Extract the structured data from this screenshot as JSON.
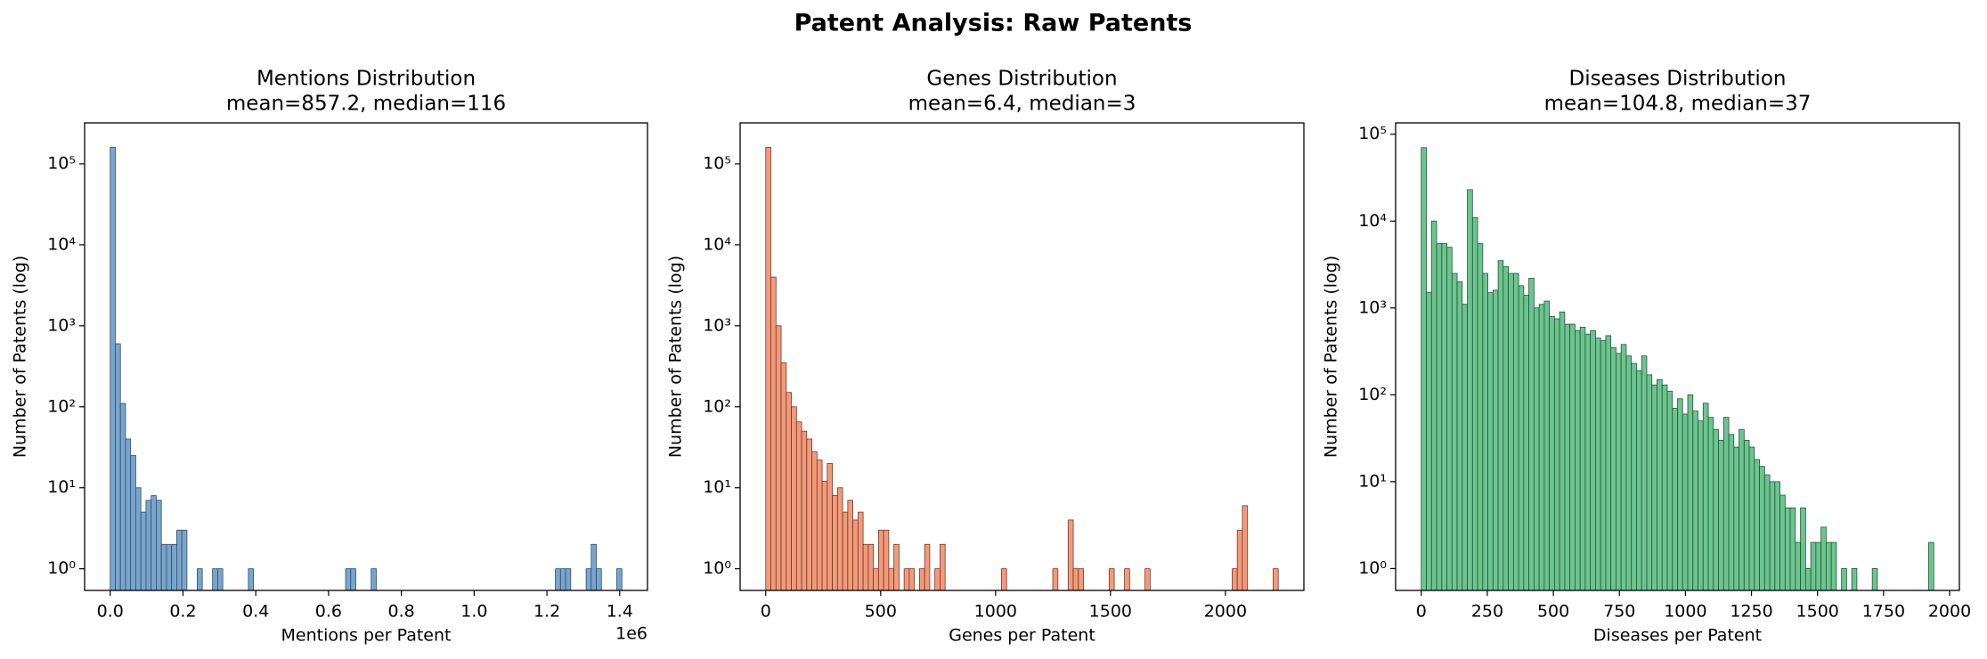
{
  "title": "Patent Analysis: Raw Patents",
  "chart_data": [
    {
      "type": "histogram",
      "title": "Mentions Distribution",
      "subtitle": "mean=857.2, median=116",
      "xlabel": "Mentions per Patent",
      "ylabel": "Number of Patents (log)",
      "x_offset_label": "1e6",
      "color": "#79a5cc",
      "edgecolor": "#2f4f6a",
      "yscale": "log",
      "bins": [
        0,
        14060,
        28120,
        42180,
        56240,
        70300,
        84360,
        98420,
        112480,
        126540,
        140600,
        154660,
        168720,
        182780,
        196840,
        210900,
        224960,
        239020,
        253080,
        267140,
        281200,
        295260,
        309320,
        323380,
        337440,
        351500,
        365560,
        379620,
        393680,
        407740,
        421800,
        435860,
        449920,
        463980,
        478040,
        492100,
        506160,
        520220,
        534280,
        548340,
        562400,
        576460,
        590520,
        604580,
        618640,
        632700,
        646760,
        660820,
        674880,
        688940,
        703000,
        717060,
        731120,
        745180,
        759240,
        773300,
        787360,
        801420,
        815480,
        829540,
        843600,
        857660,
        871720,
        885780,
        899840,
        913900,
        927960,
        942020,
        956080,
        970140,
        984200,
        998260,
        1012320,
        1026380,
        1040440,
        1054500,
        1068560,
        1082620,
        1096680,
        1110740,
        1124800,
        1138860,
        1152920,
        1166980,
        1181040,
        1195100,
        1209160,
        1223220,
        1237280,
        1251340,
        1265400,
        1279460,
        1293520,
        1307580,
        1321640,
        1335700,
        1349760,
        1363820,
        1377880,
        1391940,
        1406000
      ],
      "values": [
        160000,
        600,
        110,
        40,
        25,
        10,
        5,
        7,
        8,
        7,
        2,
        2,
        2,
        3,
        3,
        0,
        0,
        1,
        0,
        0,
        1,
        1,
        0,
        0,
        0,
        0,
        0,
        1,
        0,
        0,
        0,
        0,
        0,
        0,
        0,
        0,
        0,
        0,
        0,
        0,
        0,
        0,
        0,
        0,
        0,
        0,
        1,
        1,
        0,
        0,
        0,
        1,
        0,
        0,
        0,
        0,
        0,
        0,
        0,
        0,
        0,
        0,
        0,
        0,
        0,
        0,
        0,
        0,
        0,
        0,
        0,
        0,
        0,
        0,
        0,
        0,
        0,
        0,
        0,
        0,
        0,
        0,
        0,
        0,
        0,
        0,
        0,
        1,
        1,
        1,
        0,
        0,
        0,
        1,
        2,
        1,
        0,
        0,
        0,
        1
      ],
      "xlim": [
        -70300,
        1476300
      ],
      "xticks": [
        {
          "value": 0,
          "label": "0.0"
        },
        {
          "value": 200000,
          "label": "0.2"
        },
        {
          "value": 400000,
          "label": "0.4"
        },
        {
          "value": 600000,
          "label": "0.6"
        },
        {
          "value": 800000,
          "label": "0.8"
        },
        {
          "value": 1000000,
          "label": "1.0"
        },
        {
          "value": 1200000,
          "label": "1.2"
        },
        {
          "value": 1400000,
          "label": "1.4"
        }
      ],
      "ylim": [
        0.54,
        320000
      ],
      "yticks": [
        {
          "value": 1,
          "label": "10⁰"
        },
        {
          "value": 10,
          "label": "10¹"
        },
        {
          "value": 100,
          "label": "10²"
        },
        {
          "value": 1000,
          "label": "10³"
        },
        {
          "value": 10000,
          "label": "10⁴"
        },
        {
          "value": 100000,
          "label": "10⁵"
        }
      ]
    },
    {
      "type": "histogram",
      "title": "Genes Distribution",
      "subtitle": "mean=6.4, median=3",
      "xlabel": "Genes per Patent",
      "ylabel": "Number of Patents (log)",
      "color": "#f39a7b",
      "edgecolor": "#6e3a28",
      "yscale": "log",
      "bins": [
        0,
        22.3,
        44.6,
        66.9,
        89.2,
        111.5,
        133.8,
        156.1,
        178.4,
        200.7,
        223,
        245.3,
        267.6,
        289.9,
        312.2,
        334.5,
        356.8,
        379.1,
        401.4,
        423.7,
        446,
        468.3,
        490.6,
        512.9,
        535.2,
        557.5,
        579.8,
        602.1,
        624.4,
        646.7,
        669,
        691.3,
        713.6,
        735.9,
        758.2,
        780.5,
        802.8,
        825.1,
        847.4,
        869.7,
        892,
        914.3,
        936.6,
        958.9,
        981.2,
        1003.5,
        1025.8,
        1048.1,
        1070.4,
        1092.7,
        1115,
        1137.3,
        1159.6,
        1181.9,
        1204.2,
        1226.5,
        1248.8,
        1271.1,
        1293.4,
        1315.7,
        1338,
        1360.3,
        1382.6,
        1404.9,
        1427.2,
        1449.5,
        1471.8,
        1494.1,
        1516.4,
        1538.7,
        1561,
        1583.3,
        1605.6,
        1627.9,
        1650.2,
        1672.5,
        1694.8,
        1717.1,
        1739.4,
        1761.7,
        1784,
        1806.3,
        1828.6,
        1850.9,
        1873.2,
        1895.5,
        1917.8,
        1940.1,
        1962.4,
        1984.7,
        2007,
        2029.3,
        2051.6,
        2073.9,
        2096.2,
        2118.5,
        2140.8,
        2163.1,
        2185.4,
        2207.7,
        2230
      ],
      "values": [
        160000,
        4000,
        1000,
        350,
        150,
        100,
        65,
        50,
        40,
        28,
        22,
        12,
        20,
        8,
        10,
        5,
        7,
        4,
        5,
        2,
        2,
        1,
        3,
        3,
        1,
        2,
        0,
        1,
        1,
        0,
        1,
        2,
        0,
        1,
        2,
        0,
        0,
        0,
        0,
        0,
        0,
        0,
        0,
        0,
        0,
        0,
        1,
        0,
        0,
        0,
        0,
        0,
        0,
        0,
        0,
        0,
        1,
        0,
        0,
        4,
        1,
        1,
        0,
        0,
        0,
        0,
        0,
        1,
        0,
        0,
        1,
        0,
        0,
        0,
        1,
        0,
        0,
        0,
        0,
        0,
        0,
        0,
        0,
        0,
        0,
        0,
        0,
        0,
        0,
        0,
        0,
        1,
        3,
        6,
        0,
        0,
        0,
        0,
        0,
        1
      ],
      "xlim": [
        -111.5,
        2341.5
      ],
      "xticks": [
        0,
        500,
        1000,
        1500,
        2000
      ],
      "ylim": [
        0.54,
        320000
      ],
      "yticks": [
        {
          "value": 1,
          "label": "10⁰"
        },
        {
          "value": 10,
          "label": "10¹"
        },
        {
          "value": 100,
          "label": "10²"
        },
        {
          "value": 1000,
          "label": "10³"
        },
        {
          "value": 10000,
          "label": "10⁴"
        },
        {
          "value": 100000,
          "label": "10⁵"
        }
      ]
    },
    {
      "type": "histogram",
      "title": "Diseases Distribution",
      "subtitle": "mean=104.8, median=37",
      "xlabel": "Diseases per Patent",
      "ylabel": "Number of Patents (log)",
      "color": "#6cc48f",
      "edgecolor": "#24553a",
      "yscale": "log",
      "bins": [
        0,
        19.4,
        38.8,
        58.2,
        77.6,
        97,
        116.4,
        135.8,
        155.2,
        174.6,
        194,
        213.4,
        232.8,
        252.2,
        271.6,
        291,
        310.4,
        329.8,
        349.2,
        368.6,
        388,
        407.4,
        426.8,
        446.2,
        465.6,
        485,
        504.4,
        523.8,
        543.2,
        562.6,
        582,
        601.4,
        620.8,
        640.2,
        659.6,
        679,
        698.4,
        717.8,
        737.2,
        756.6,
        776,
        795.4,
        814.8,
        834.2,
        853.6,
        873,
        892.4,
        911.8,
        931.2,
        950.6,
        970,
        989.4,
        1008.8,
        1028.2,
        1047.6,
        1067,
        1086.4,
        1105.8,
        1125.2,
        1144.6,
        1164,
        1183.4,
        1202.8,
        1222.2,
        1241.6,
        1261,
        1280.4,
        1299.8,
        1319.2,
        1338.6,
        1358,
        1377.4,
        1396.8,
        1416.2,
        1435.6,
        1455,
        1474.4,
        1493.8,
        1513.2,
        1532.6,
        1552,
        1571.4,
        1590.8,
        1610.2,
        1629.6,
        1649,
        1668.4,
        1687.8,
        1707.2,
        1726.6,
        1746,
        1765.4,
        1784.8,
        1804.2,
        1823.6,
        1843,
        1862.4,
        1881.8,
        1901.2,
        1920.6,
        1940
      ],
      "values": [
        70000,
        1500,
        10000,
        5500,
        5500,
        5000,
        2500,
        2000,
        1100,
        23000,
        11000,
        5500,
        2500,
        1500,
        1600,
        3500,
        3000,
        2500,
        2500,
        1800,
        1400,
        2200,
        1000,
        1100,
        1200,
        800,
        750,
        900,
        650,
        650,
        550,
        600,
        500,
        550,
        450,
        420,
        480,
        350,
        300,
        380,
        280,
        230,
        190,
        280,
        170,
        130,
        150,
        130,
        110,
        70,
        90,
        60,
        100,
        65,
        50,
        80,
        55,
        40,
        30,
        55,
        35,
        25,
        40,
        30,
        25,
        18,
        15,
        12,
        10,
        10,
        7,
        5,
        5,
        2,
        5,
        1,
        2,
        2,
        3,
        2,
        2,
        0,
        1,
        0,
        1,
        0,
        0,
        0,
        1,
        0,
        0,
        0,
        0,
        0,
        0,
        0,
        0,
        0,
        0,
        2
      ],
      "xlim": [
        -97,
        2037
      ],
      "xticks": [
        0,
        250,
        500,
        750,
        1000,
        1250,
        1500,
        1750,
        2000
      ],
      "ylim": [
        0.56,
        135000
      ],
      "yticks": [
        {
          "value": 1,
          "label": "10⁰"
        },
        {
          "value": 10,
          "label": "10¹"
        },
        {
          "value": 100,
          "label": "10²"
        },
        {
          "value": 1000,
          "label": "10³"
        },
        {
          "value": 10000,
          "label": "10⁴"
        },
        {
          "value": 100000,
          "label": "10⁵"
        }
      ]
    }
  ]
}
